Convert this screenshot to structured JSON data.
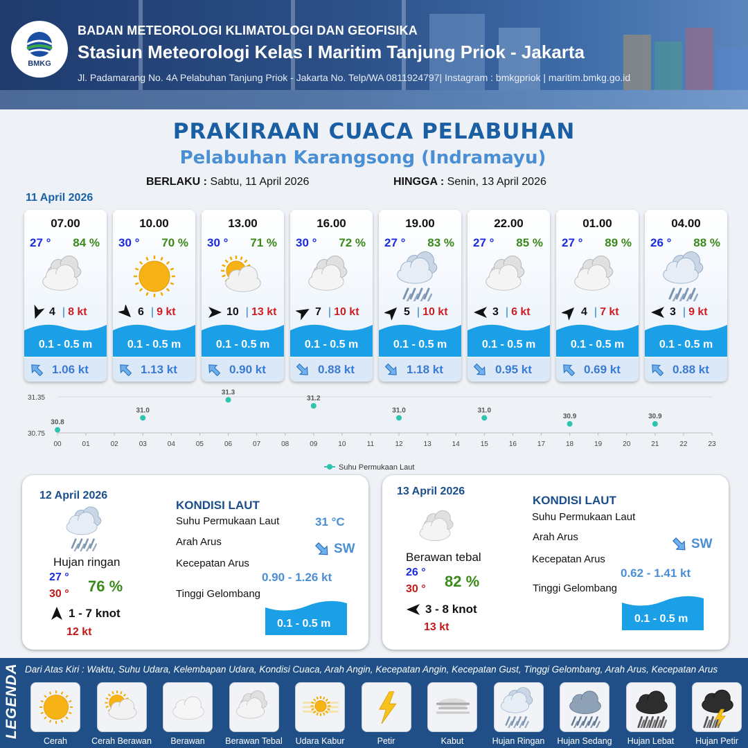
{
  "header": {
    "logo_text": "BMKG",
    "agency": "BADAN METEOROLOGI KLIMATOLOGI DAN GEOFISIKA",
    "station": "Stasiun Meteorologi Kelas I Maritim Tanjung Priok - Jakarta",
    "address": "Jl. Padamarang No. 4A Pelabuhan Tanjung Priok - Jakarta No. Telp/WA 0811924797| Instagram : bmkgpriok | maritim.bmkg.go.id"
  },
  "title": "PRAKIRAAN CUACA PELABUHAN",
  "subtitle": "Pelabuhan Karangsong (Indramayu)",
  "validity": {
    "from_label": "BERLAKU :",
    "from_value": "Sabtu, 11 April 2026",
    "to_label": "HINGGA :",
    "to_value": "Senin, 13 April 2026"
  },
  "day1_date": "11 April 2026",
  "hourly": [
    {
      "time": "07.00",
      "temp": "27 °",
      "hum": "84 %",
      "icon": "berawan-tebal",
      "wind_dir": 200,
      "wind": "4",
      "gust": "8 kt",
      "wave": "0.1 - 0.5 m",
      "cur_dir": 135,
      "cur": "1.06 kt"
    },
    {
      "time": "10.00",
      "temp": "30 °",
      "hum": "70 %",
      "icon": "cerah",
      "wind_dir": 135,
      "wind": "6",
      "gust": "9 kt",
      "wave": "0.1 - 0.5 m",
      "cur_dir": 135,
      "cur": "1.13 kt"
    },
    {
      "time": "13.00",
      "temp": "30 °",
      "hum": "71 %",
      "icon": "cerah-berawan",
      "wind_dir": 90,
      "wind": "10",
      "gust": "13 kt",
      "wave": "0.1 - 0.5 m",
      "cur_dir": 135,
      "cur": "0.90 kt"
    },
    {
      "time": "16.00",
      "temp": "30 °",
      "hum": "72 %",
      "icon": "berawan-tebal",
      "wind_dir": 60,
      "wind": "7",
      "gust": "10 kt",
      "wave": "0.1 - 0.5 m",
      "cur_dir": 315,
      "cur": "0.88 kt"
    },
    {
      "time": "19.00",
      "temp": "27 °",
      "hum": "83 %",
      "icon": "hujan-ringan",
      "wind_dir": 45,
      "wind": "5",
      "gust": "10 kt",
      "wave": "0.1 - 0.5 m",
      "cur_dir": 315,
      "cur": "1.18 kt"
    },
    {
      "time": "22.00",
      "temp": "27 °",
      "hum": "85 %",
      "icon": "berawan-tebal",
      "wind_dir": 270,
      "wind": "3",
      "gust": "6 kt",
      "wave": "0.1 - 0.5 m",
      "cur_dir": 315,
      "cur": "0.95 kt"
    },
    {
      "time": "01.00",
      "temp": "27 °",
      "hum": "89 %",
      "icon": "berawan-tebal",
      "wind_dir": 45,
      "wind": "4",
      "gust": "7 kt",
      "wave": "0.1 - 0.5 m",
      "cur_dir": 135,
      "cur": "0.69 kt"
    },
    {
      "time": "04.00",
      "temp": "26 °",
      "hum": "88 %",
      "icon": "hujan-ringan",
      "wind_dir": 270,
      "wind": "3",
      "gust": "9 kt",
      "wave": "0.1 - 0.5 m",
      "cur_dir": 135,
      "cur": "0.88 kt"
    }
  ],
  "chart_data": {
    "type": "scatter",
    "series": [
      {
        "name": "Suhu Permukaan Laut",
        "color": "#2ec4b0",
        "x": [
          0,
          3,
          6,
          9,
          12,
          15,
          18,
          21
        ],
        "values": [
          30.8,
          31.0,
          31.3,
          31.2,
          31.0,
          31.0,
          30.9,
          30.9
        ]
      }
    ],
    "x_ticks": [
      "00",
      "01",
      "02",
      "03",
      "04",
      "05",
      "06",
      "07",
      "08",
      "09",
      "10",
      "11",
      "12",
      "13",
      "14",
      "15",
      "16",
      "17",
      "18",
      "19",
      "20",
      "21",
      "22",
      "23"
    ],
    "y_ticks": [
      "30.75",
      "31.35"
    ],
    "ylim": [
      30.75,
      31.35
    ],
    "xlim": [
      0,
      23
    ],
    "legend": "bottom-center",
    "grid": true
  },
  "days": [
    {
      "date": "12 April 2026",
      "icon": "hujan-ringan",
      "condition": "Hujan ringan",
      "tmin": "27 °",
      "tmax": "30 °",
      "hum": "76 %",
      "wind_dir": 0,
      "wind": "1  - 7 knot",
      "gust": "12 kt",
      "sea_title": "KONDISI LAUT",
      "sst_label": "Suhu Permukaan Laut",
      "sst": "31 °C",
      "cur_dir_label": "Arah Arus",
      "cur_dir_icon": 315,
      "cur_dir": "SW",
      "cur_spd_label": "Kecepatan Arus",
      "cur_spd": "0.90  - 1.26 kt",
      "wave_label": "Tinggi Gelombang",
      "wave": "0.1 - 0.5 m"
    },
    {
      "date": "13 April 2026",
      "icon": "berawan-tebal",
      "condition": "Berawan tebal",
      "tmin": "26 °",
      "tmax": "30 °",
      "hum": "82 %",
      "wind_dir": 270,
      "wind": "3  - 8 knot",
      "gust": "13 kt",
      "sea_title": "KONDISI LAUT",
      "sst_label": "Suhu Permukaan Laut",
      "sst": "",
      "cur_dir_label": "Arah Arus",
      "cur_dir_icon": 315,
      "cur_dir": "SW",
      "cur_spd_label": "Kecepatan Arus",
      "cur_spd": "0.62  - 1.41 kt",
      "wave_label": "Tinggi Gelombang",
      "wave": "0.1 - 0.5 m"
    }
  ],
  "legend": {
    "title": "LEGENDA",
    "description": "Dari Atas Kiri : Waktu, Suhu Udara, Kelembapan Udara, Kondisi Cuaca, Arah Angin, Kecepatan Angin, Kecepatan Gust, Tinggi Gelombang, Arah Arus, Kecepatan Arus",
    "items": [
      {
        "label": "Cerah",
        "icon": "cerah"
      },
      {
        "label": "Cerah Berawan",
        "icon": "cerah-berawan"
      },
      {
        "label": "Berawan",
        "icon": "berawan"
      },
      {
        "label": "Berawan Tebal",
        "icon": "berawan-tebal"
      },
      {
        "label": "Udara Kabur",
        "icon": "udara-kabur"
      },
      {
        "label": "Petir",
        "icon": "petir"
      },
      {
        "label": "Kabut",
        "icon": "kabut"
      },
      {
        "label": "Hujan Ringan",
        "icon": "hujan-ringan"
      },
      {
        "label": "Hujan Sedang",
        "icon": "hujan-sedang"
      },
      {
        "label": "Hujan Lebat",
        "icon": "hujan-lebat"
      },
      {
        "label": "Hujan Petir",
        "icon": "hujan-petir"
      }
    ]
  }
}
